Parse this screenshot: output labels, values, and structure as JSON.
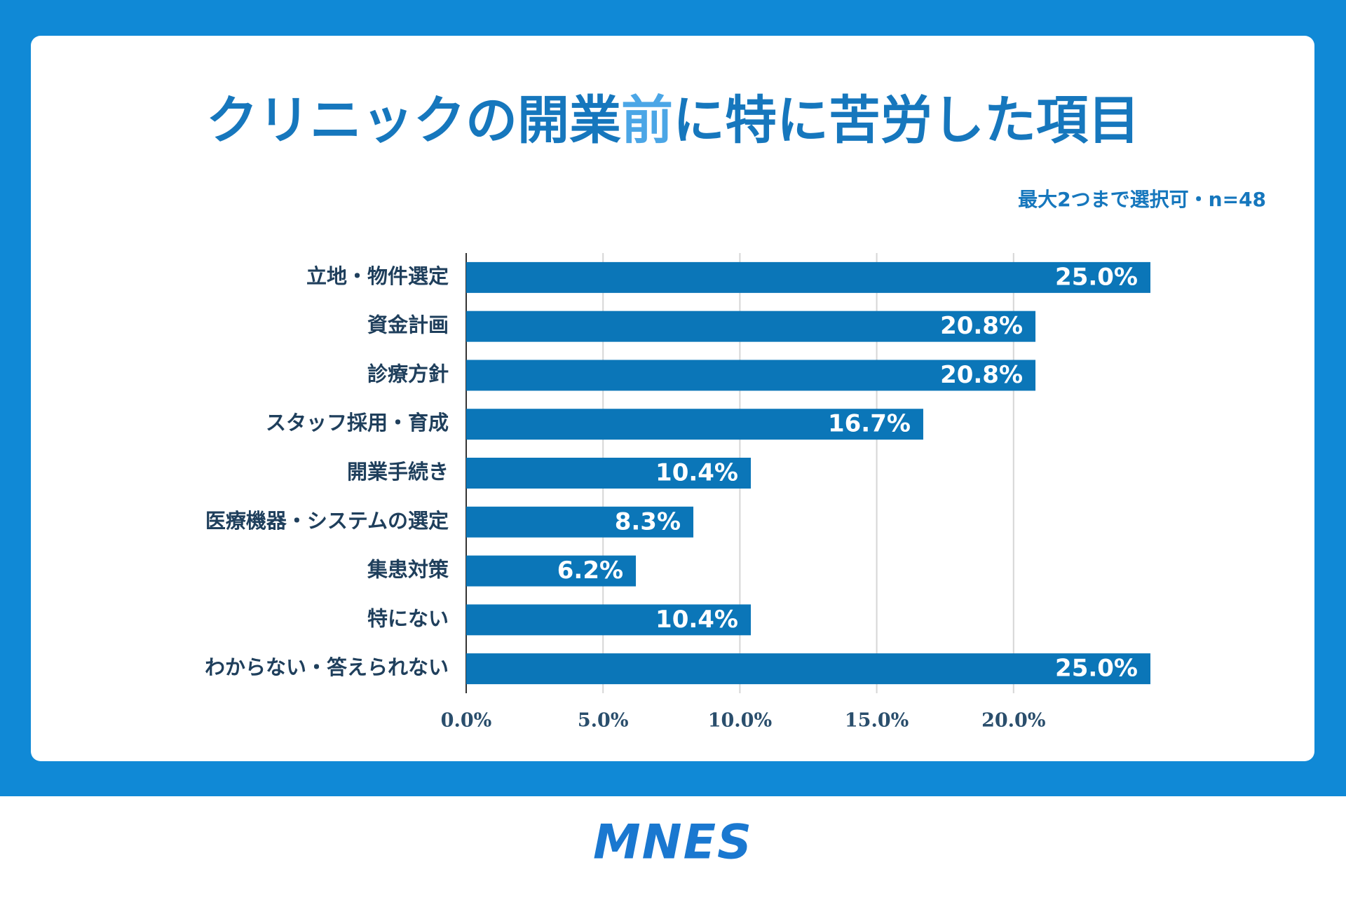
{
  "chart_data": {
    "type": "hbar",
    "title": [
      {
        "text": "クリニックの開業",
        "color": "#1677bd"
      },
      {
        "text": "前",
        "color": "#4ba6e6"
      },
      {
        "text": "に特に苦労した項目",
        "color": "#1677bd"
      }
    ],
    "subtitle": "最大2つまで選択可・n=48",
    "categories": [
      "立地・物件選定",
      "資金計画",
      "診療方針",
      "スタッフ採用・育成",
      "開業手続き",
      "医療機器・システムの選定",
      "集患対策",
      "特にない",
      "わからない・答えられない"
    ],
    "values": [
      25.0,
      20.8,
      20.8,
      16.7,
      10.4,
      8.3,
      6.2,
      10.4,
      25.0
    ],
    "value_labels": [
      "25.0%",
      "20.8%",
      "20.8%",
      "16.7%",
      "10.4%",
      "8.3%",
      "6.2%",
      "10.4%",
      "25.0%"
    ],
    "color": "#0b76b8",
    "xlim": [
      0,
      25
    ],
    "xticks": [
      {
        "value": 0,
        "label": "0.0%"
      },
      {
        "value": 5,
        "label": "5.0%"
      },
      {
        "value": 10,
        "label": "10.0%"
      },
      {
        "value": 15,
        "label": "15.0%"
      },
      {
        "value": 20,
        "label": "20.0%"
      }
    ],
    "grid": true
  },
  "footer": {
    "logo": "MNES"
  }
}
